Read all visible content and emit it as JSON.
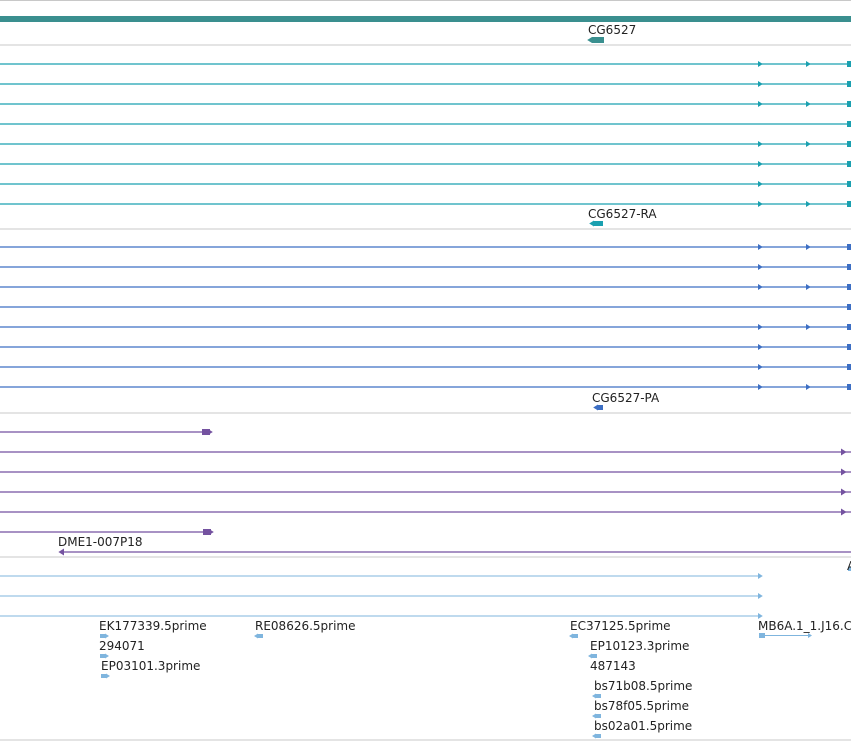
{
  "colors": {
    "teal_dark": "#3a8f8f",
    "teal": "#1aa0b0",
    "blue": "#3d6fc4",
    "purple": "#7452a0",
    "light_blue": "#7fb5de",
    "separator": "#c8c8c8"
  },
  "tracks": {
    "gene": {
      "label": "CG6527"
    },
    "transcript_ra": {
      "label": "CG6527-RA"
    },
    "protein_pa": {
      "label": "CG6527-PA"
    },
    "clone": {
      "label": "DME1-007P18"
    },
    "est": {
      "labels": [
        "EK177339.5prime",
        "294071",
        "EP03101.3prime",
        "RE08626.5prime",
        "EC37125.5prime",
        "EP10123.3prime",
        "487143",
        "bs71b08.5prime",
        "bs78f05.5prime",
        "bs02a01.5prime",
        "MB6A.1_1.J16.C",
        "A"
      ]
    }
  }
}
